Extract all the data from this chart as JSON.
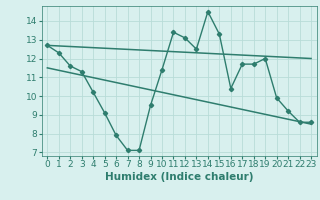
{
  "x": [
    0,
    1,
    2,
    3,
    4,
    5,
    6,
    7,
    8,
    9,
    10,
    11,
    12,
    13,
    14,
    15,
    16,
    17,
    18,
    19,
    20,
    21,
    22,
    23
  ],
  "y_main": [
    12.7,
    12.3,
    11.6,
    11.3,
    10.2,
    9.1,
    7.9,
    7.1,
    7.1,
    9.5,
    11.4,
    13.4,
    13.1,
    12.5,
    14.5,
    13.3,
    10.4,
    11.7,
    11.7,
    12.0,
    9.9,
    9.2,
    8.6,
    8.6
  ],
  "y_reg1_start": 12.7,
  "y_reg1_end": 12.0,
  "y_reg2_start": 11.5,
  "y_reg2_end": 8.5,
  "color_main": "#2e7d6e",
  "color_reg": "#2e7d6e",
  "bg_color": "#d8f0ee",
  "grid_color": "#b8dcd8",
  "xlabel": "Humidex (Indice chaleur)",
  "ylim": [
    6.8,
    14.8
  ],
  "xlim": [
    -0.5,
    23.5
  ],
  "yticks": [
    7,
    8,
    9,
    10,
    11,
    12,
    13,
    14
  ],
  "xticks": [
    0,
    1,
    2,
    3,
    4,
    5,
    6,
    7,
    8,
    9,
    10,
    11,
    12,
    13,
    14,
    15,
    16,
    17,
    18,
    19,
    20,
    21,
    22,
    23
  ],
  "tick_fontsize": 6.5,
  "xlabel_fontsize": 7.5
}
